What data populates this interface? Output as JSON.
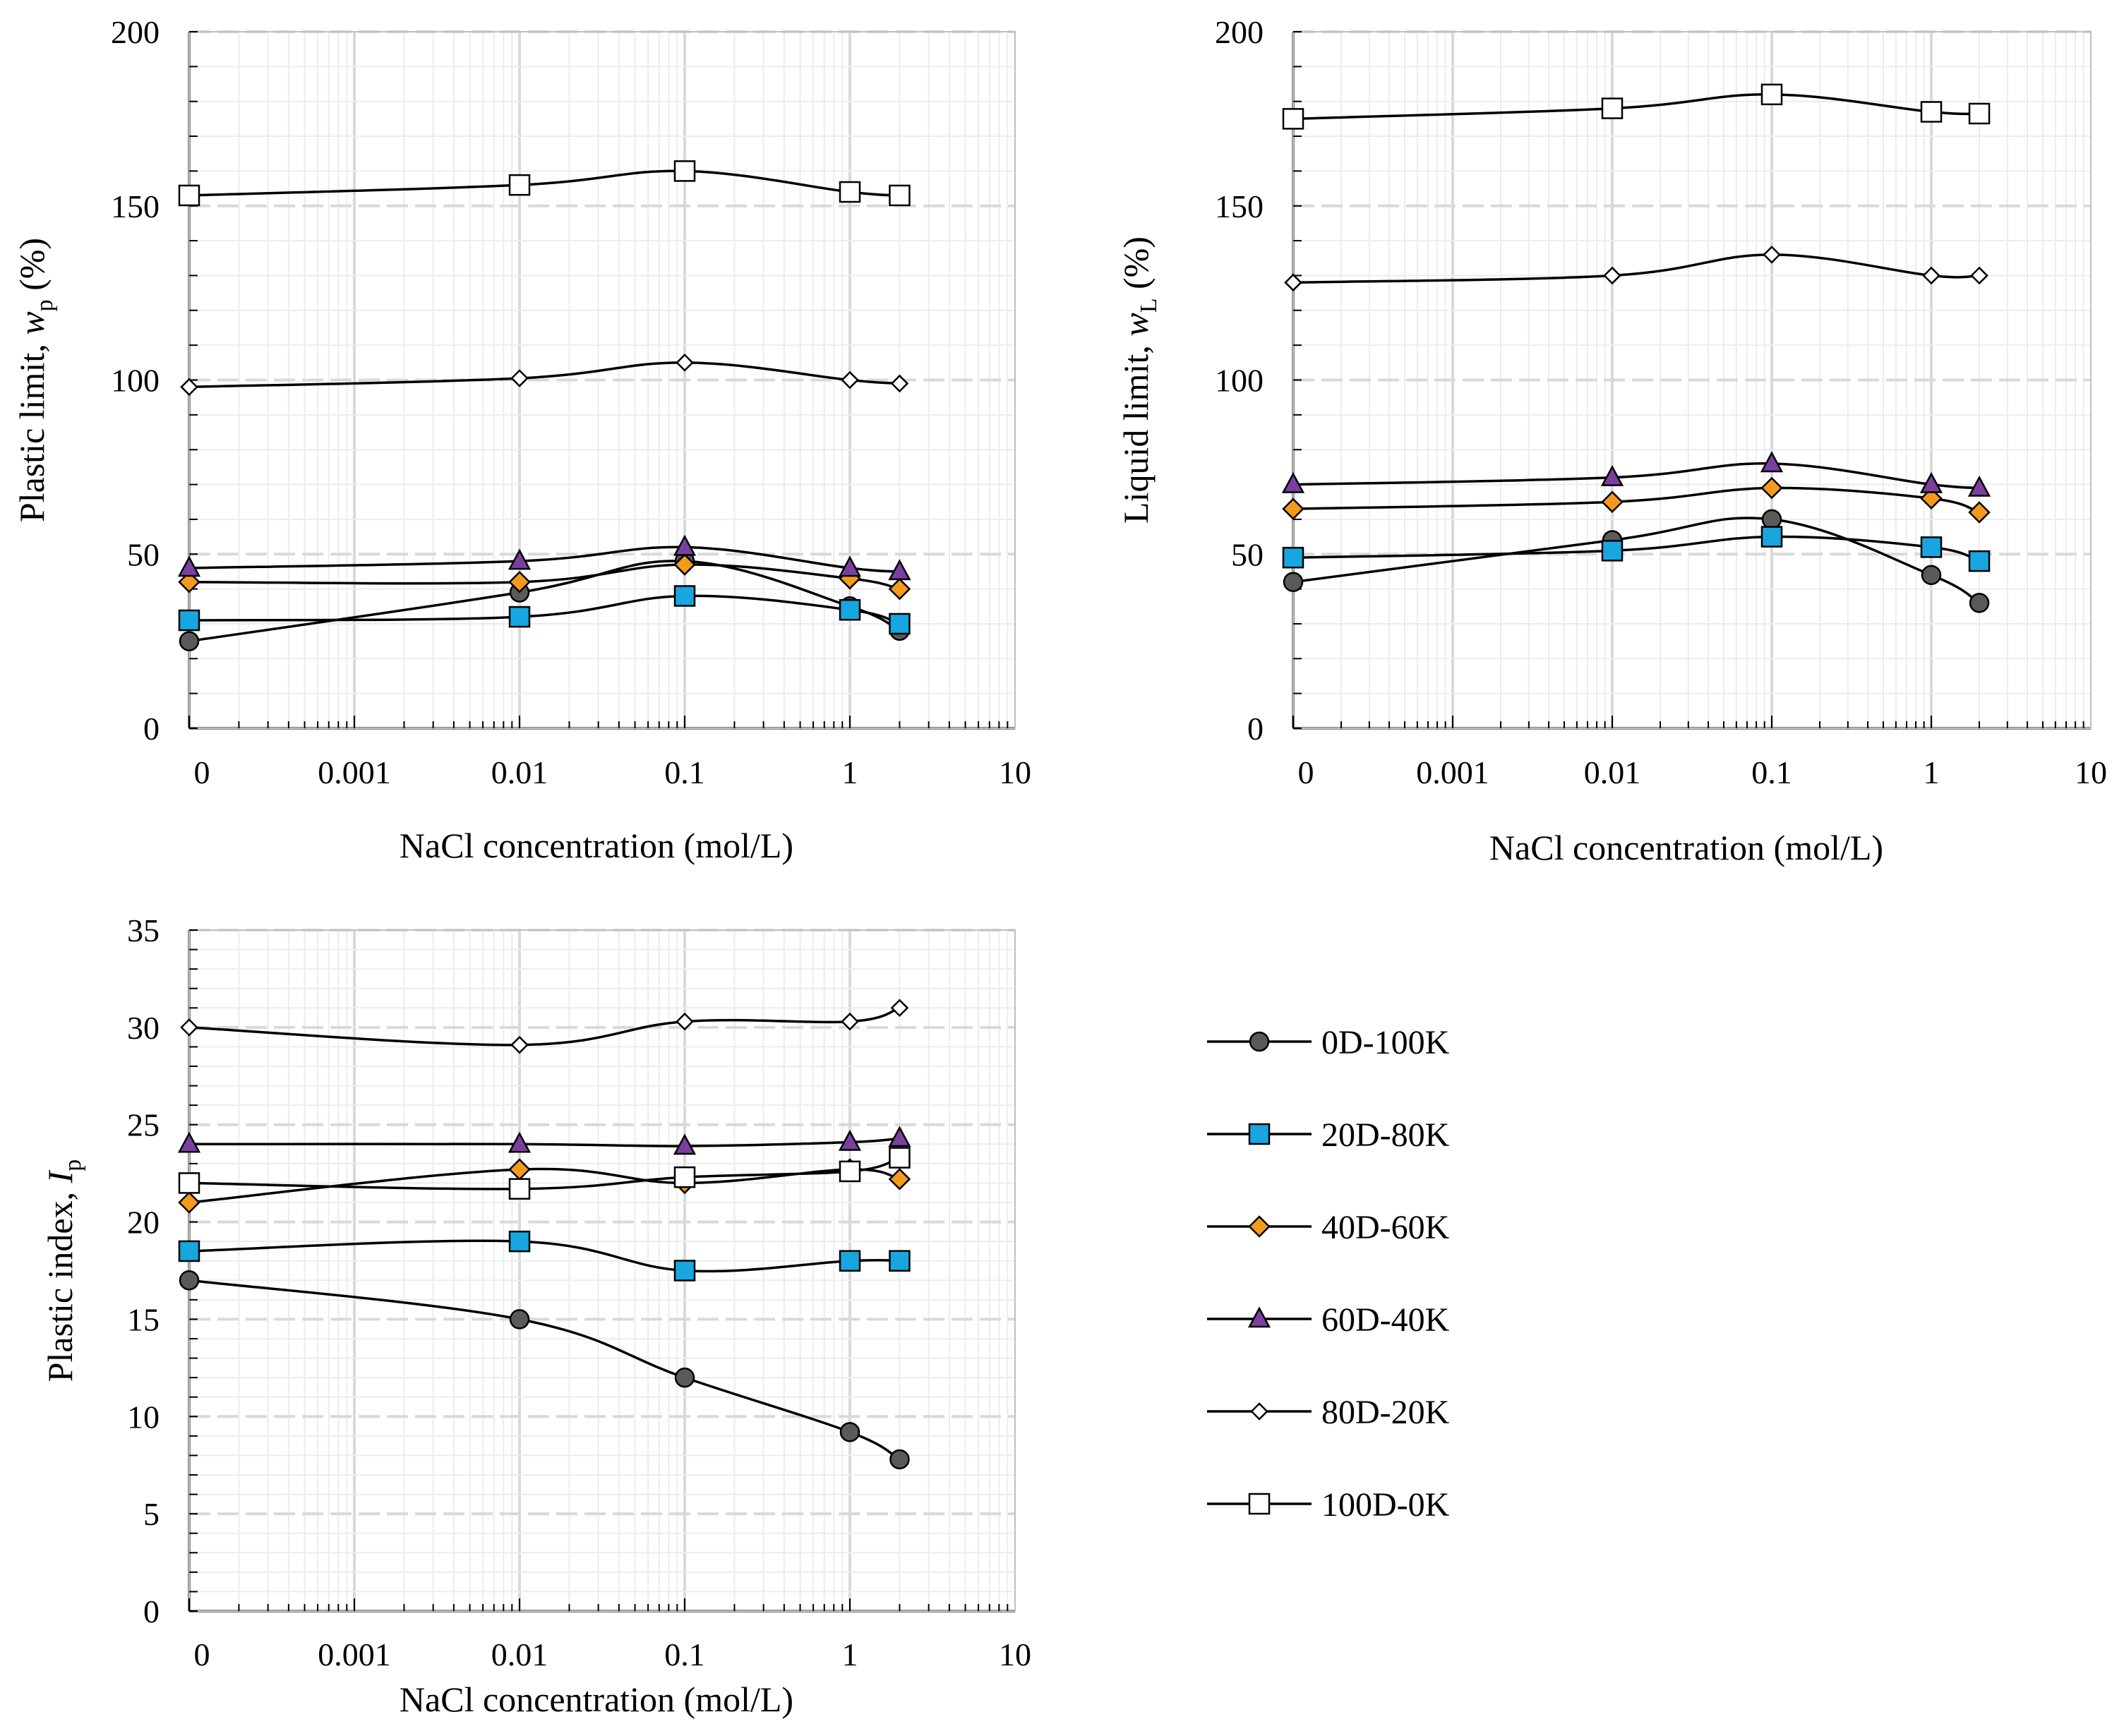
{
  "figure": {
    "panels": 3
  },
  "colors": {
    "0D-100K": "#5a5a5a",
    "20D-80K": "#17a6e0",
    "40D-60K": "#f39a1d",
    "60D-40K": "#7b3fa0",
    "80D-20K": "#ffffff",
    "100D-0K": "#ffffff",
    "line": "#000000",
    "grid_major": "#d9d9d9",
    "grid_minor": "#ececec"
  },
  "legend": {
    "items": [
      {
        "name": "0D-100K",
        "marker": "circle"
      },
      {
        "name": "20D-80K",
        "marker": "square"
      },
      {
        "name": "40D-60K",
        "marker": "diamond"
      },
      {
        "name": "60D-40K",
        "marker": "triangle"
      },
      {
        "name": "80D-20K",
        "marker": "diamond-open"
      },
      {
        "name": "100D-0K",
        "marker": "square-open"
      }
    ]
  },
  "chart_data": [
    {
      "id": "plastic-limit",
      "type": "line",
      "title": "",
      "xlabel": "NaCl concentration (mol/L)",
      "ylabel": "Plastic limit, ",
      "ylabel_var": "w",
      "ylabel_sub": "p",
      "ylabel_tail": " (%)",
      "xscale": "log",
      "xlim": [
        0.0001,
        10
      ],
      "x_zero_plotted_at": 0.0001,
      "xtick_labels": [
        "0",
        "0.001",
        "0.01",
        "0.1",
        "1",
        "10"
      ],
      "ylim": [
        0,
        200
      ],
      "yticks": [
        0,
        50,
        100,
        150,
        200
      ],
      "ytick_labels": [
        "0",
        "50",
        "100",
        "150",
        "200"
      ],
      "grid": true,
      "x": [
        0,
        0.01,
        0.1,
        1,
        2
      ],
      "series": [
        {
          "name": "0D-100K",
          "values": [
            25,
            39,
            48,
            35,
            28
          ]
        },
        {
          "name": "20D-80K",
          "values": [
            31,
            32,
            38,
            34,
            30
          ]
        },
        {
          "name": "40D-60K",
          "values": [
            42,
            42,
            47,
            43,
            40
          ]
        },
        {
          "name": "60D-40K",
          "values": [
            46,
            48,
            52,
            46,
            45
          ]
        },
        {
          "name": "80D-20K",
          "values": [
            98,
            100.5,
            105,
            100,
            99
          ]
        },
        {
          "name": "100D-0K",
          "values": [
            153,
            156,
            160,
            154,
            153
          ]
        }
      ]
    },
    {
      "id": "liquid-limit",
      "type": "line",
      "title": "",
      "xlabel": "NaCl concentration (mol/L)",
      "ylabel": "Liquid limit, ",
      "ylabel_var": "w",
      "ylabel_sub": "L",
      "ylabel_tail": " (%)",
      "xscale": "log",
      "xlim": [
        0.0001,
        10
      ],
      "x_zero_plotted_at": 0.0001,
      "xtick_labels": [
        "0",
        "0.001",
        "0.01",
        "0.1",
        "1",
        "10"
      ],
      "ylim": [
        0,
        200
      ],
      "yticks": [
        0,
        50,
        100,
        150,
        200
      ],
      "ytick_labels": [
        "0",
        "50",
        "100",
        "150",
        "200"
      ],
      "grid": true,
      "x": [
        0,
        0.01,
        0.1,
        1,
        2
      ],
      "series": [
        {
          "name": "0D-100K",
          "values": [
            42,
            54,
            60,
            44,
            36
          ]
        },
        {
          "name": "20D-80K",
          "values": [
            49,
            51,
            55,
            52,
            48
          ]
        },
        {
          "name": "40D-60K",
          "values": [
            63,
            65,
            69,
            66,
            62
          ]
        },
        {
          "name": "60D-40K",
          "values": [
            70,
            72,
            76,
            70,
            69
          ]
        },
        {
          "name": "80D-20K",
          "values": [
            128,
            130,
            136,
            130,
            130
          ]
        },
        {
          "name": "100D-0K",
          "values": [
            175,
            178,
            182,
            177,
            176.5
          ]
        }
      ]
    },
    {
      "id": "plastic-index",
      "type": "line",
      "title": "",
      "xlabel": "NaCl concentration (mol/L)",
      "ylabel": "Plastic index, ",
      "ylabel_var": "I",
      "ylabel_sub": "p",
      "ylabel_tail": "",
      "xscale": "log",
      "xlim": [
        0.0001,
        10
      ],
      "x_zero_plotted_at": 0.0001,
      "xtick_labels": [
        "0",
        "0.001",
        "0.01",
        "0.1",
        "1",
        "10"
      ],
      "ylim": [
        0,
        35
      ],
      "yticks": [
        0,
        5,
        10,
        15,
        20,
        25,
        30,
        35
      ],
      "ytick_labels": [
        "0",
        "5",
        "10",
        "15",
        "20",
        "25",
        "30",
        "35"
      ],
      "grid": true,
      "x": [
        0,
        0.01,
        0.1,
        1,
        2
      ],
      "series": [
        {
          "name": "0D-100K",
          "values": [
            17,
            15,
            12,
            9.2,
            7.8
          ]
        },
        {
          "name": "20D-80K",
          "values": [
            18.5,
            19,
            17.5,
            18,
            18
          ]
        },
        {
          "name": "40D-60K",
          "values": [
            21,
            22.7,
            22,
            22.7,
            22.2
          ]
        },
        {
          "name": "60D-40K",
          "values": [
            24,
            24,
            23.9,
            24.1,
            24.3
          ]
        },
        {
          "name": "80D-20K",
          "values": [
            30,
            29.1,
            30.3,
            30.3,
            31
          ]
        },
        {
          "name": "100D-0K",
          "values": [
            22,
            21.7,
            22.3,
            22.6,
            23.3
          ]
        }
      ]
    }
  ]
}
